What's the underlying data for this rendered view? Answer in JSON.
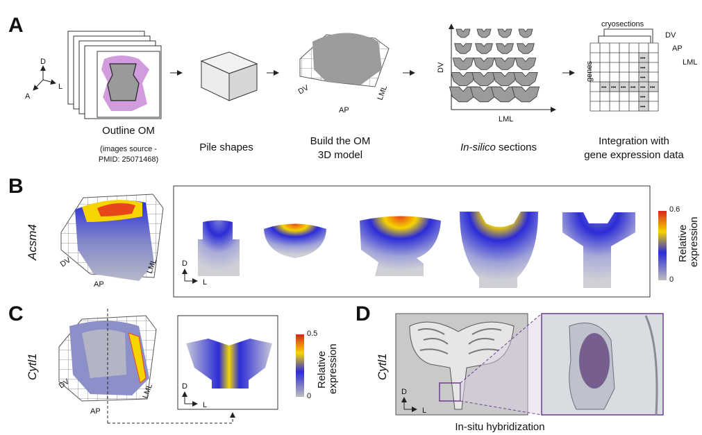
{
  "panels": {
    "a": "A",
    "b": "B",
    "c": "C",
    "d": "D"
  },
  "panel_a": {
    "steps": [
      {
        "line1": "Outline OM",
        "line2": ""
      },
      {
        "line1": "Pile shapes",
        "line2": ""
      },
      {
        "line1": "Build the OM",
        "line2": "3D model"
      },
      {
        "line1": "In-silico",
        "line2": " sections"
      },
      {
        "line1": "Integration with",
        "line2": "gene expression data"
      }
    ],
    "source_note": [
      "(images source -",
      "PMID: 25071468)"
    ],
    "orientation": {
      "d": "D",
      "l": "L",
      "a": "A"
    },
    "model_axes": {
      "dv": "DV",
      "ap": "AP",
      "lml": "LML"
    },
    "sections_axes": {
      "dv": "DV",
      "lml": "LML"
    },
    "matrix_labels": {
      "cryosections": "cryosections",
      "genes": "genes",
      "dv": "DV",
      "ap": "AP",
      "lml": "LML",
      "dots": "•••"
    }
  },
  "panel_b": {
    "gene": "Acsm4",
    "axes": {
      "dv": "DV",
      "ap": "AP",
      "lml": "LML"
    },
    "orientation": {
      "d": "D",
      "l": "L"
    },
    "colorbar": {
      "max": "0.6",
      "min": "0",
      "title1": "Relative",
      "title2": "expression"
    }
  },
  "panel_c": {
    "gene": "Cytl1",
    "axes": {
      "dv": "DV",
      "ap": "AP",
      "lml": "LML"
    },
    "orientation": {
      "d": "D",
      "l": "L"
    },
    "colorbar": {
      "max": "0.5",
      "min": "0",
      "title1": "Relative",
      "title2": "expression"
    }
  },
  "panel_d": {
    "gene": "Cytl1",
    "orientation": {
      "d": "D",
      "l": "L"
    },
    "caption": "In-situ hybridization"
  },
  "colors": {
    "heat_low": "#bdbdbd",
    "heat_mid": "#2c2cd6",
    "heat_high1": "#f5d400",
    "heat_high2": "#e23b14",
    "inset_border": "#6a3d8f"
  }
}
